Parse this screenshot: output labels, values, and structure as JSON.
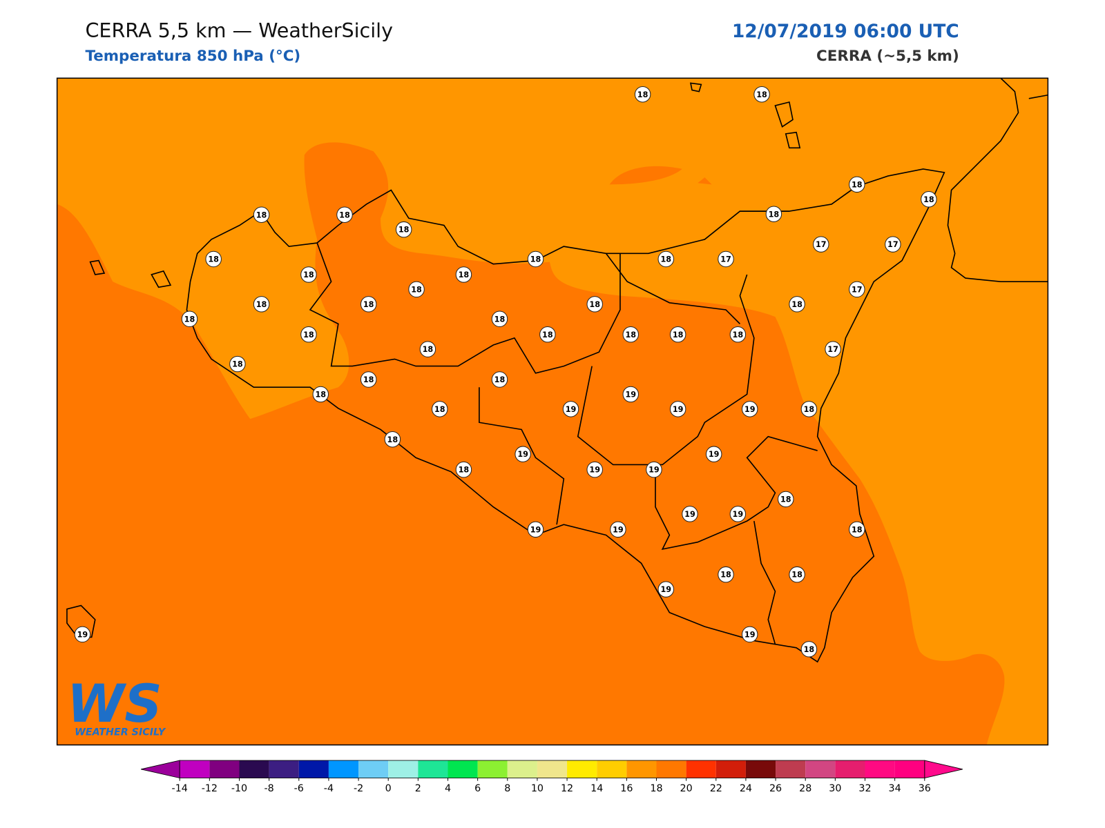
{
  "header": {
    "title": "CERRA 5,5 km — WeatherSicily",
    "subtitle": "Temperatura 850 hPa (°C)",
    "datetime": "12/07/2019 06:00 UTC",
    "model": "CERRA (~5,5 km)"
  },
  "logo": {
    "mark": "WS",
    "name": "WEATHER SICILY"
  },
  "stations": [
    18,
    18,
    18,
    18,
    18,
    18,
    18,
    18,
    18,
    18,
    18,
    17,
    17,
    17,
    18,
    18,
    18,
    17,
    18,
    18,
    18,
    18,
    18,
    18,
    18,
    18,
    18,
    18,
    18,
    18,
    18,
    17,
    18,
    18,
    18,
    19,
    18,
    19,
    19,
    19,
    18,
    18,
    19,
    19,
    18,
    19,
    19,
    18,
    19,
    19,
    19,
    19,
    18,
    18,
    18,
    19,
    19,
    18,
    19
  ],
  "colorbar": {
    "ticks": [
      -14,
      -12,
      -10,
      -8,
      -6,
      -4,
      -2,
      0,
      2,
      4,
      6,
      8,
      10,
      12,
      14,
      16,
      18,
      20,
      22,
      24,
      26,
      28,
      30,
      32,
      34,
      36
    ],
    "colors": [
      "#c000c0",
      "#800080",
      "#2a0a50",
      "#3c1e82",
      "#0018a8",
      "#0096ff",
      "#6ecdf5",
      "#9ef0e6",
      "#1ee696",
      "#00e650",
      "#8cf032",
      "#dcf08c",
      "#f0e68c",
      "#ffeb00",
      "#ffcd00",
      "#ff9600",
      "#ff7800",
      "#ff3200",
      "#d21e0a",
      "#780a0a",
      "#be3c50",
      "#d24682",
      "#e61e6e",
      "#ff0a82",
      "#ff0080"
    ],
    "under": "#9b009b",
    "over": "#ff0a8c"
  }
}
